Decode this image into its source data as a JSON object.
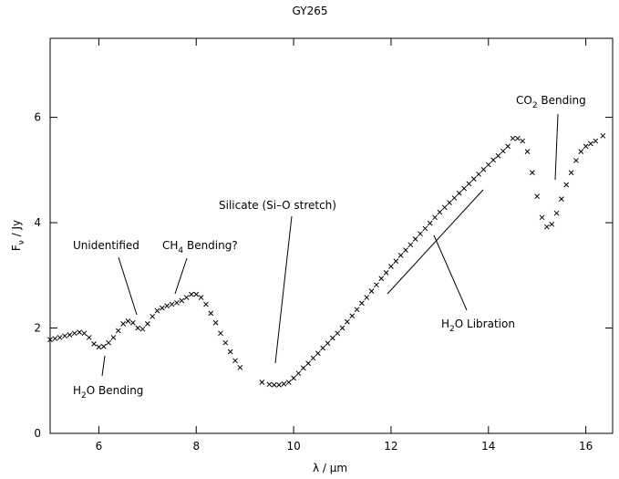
{
  "chart_data": {
    "type": "scatter",
    "title": "GY265",
    "x_label": {
      "main": "λ / μm"
    },
    "y_label": {
      "main": "F",
      "sub": "ν",
      "rest": " / Jy"
    },
    "xlim": [
      5,
      16.55
    ],
    "ylim": [
      0,
      7.5
    ],
    "xticks": [
      6,
      8,
      10,
      12,
      14,
      16
    ],
    "yticks": [
      0,
      2,
      4,
      6
    ],
    "color": "#000000",
    "x": [
      5.0,
      5.1,
      5.2,
      5.3,
      5.4,
      5.5,
      5.6,
      5.7,
      5.8,
      5.9,
      6.0,
      6.1,
      6.2,
      6.3,
      6.4,
      6.5,
      6.6,
      6.7,
      6.8,
      6.9,
      7.0,
      7.1,
      7.2,
      7.3,
      7.4,
      7.5,
      7.6,
      7.7,
      7.8,
      7.9,
      8.0,
      8.1,
      8.2,
      8.3,
      8.4,
      8.5,
      8.6,
      8.7,
      8.8,
      8.9,
      9.35,
      9.5,
      9.6,
      9.7,
      9.8,
      9.9,
      10.0,
      10.1,
      10.2,
      10.3,
      10.4,
      10.5,
      10.6,
      10.7,
      10.8,
      10.9,
      11.0,
      11.1,
      11.2,
      11.3,
      11.4,
      11.5,
      11.6,
      11.7,
      11.8,
      11.9,
      12.0,
      12.1,
      12.2,
      12.3,
      12.4,
      12.5,
      12.6,
      12.7,
      12.8,
      12.9,
      13.0,
      13.1,
      13.2,
      13.3,
      13.4,
      13.5,
      13.6,
      13.7,
      13.8,
      13.9,
      14.0,
      14.1,
      14.2,
      14.3,
      14.4,
      14.5,
      14.6,
      14.7,
      14.8,
      14.9,
      15.0,
      15.1,
      15.2,
      15.3,
      15.4,
      15.5,
      15.6,
      15.7,
      15.8,
      15.9,
      16.0,
      16.1,
      16.2,
      16.35
    ],
    "values": [
      1.78,
      1.8,
      1.82,
      1.85,
      1.87,
      1.9,
      1.92,
      1.9,
      1.82,
      1.7,
      1.64,
      1.65,
      1.72,
      1.82,
      1.95,
      2.08,
      2.13,
      2.1,
      2.0,
      1.98,
      2.08,
      2.22,
      2.33,
      2.38,
      2.42,
      2.45,
      2.48,
      2.52,
      2.58,
      2.64,
      2.64,
      2.58,
      2.45,
      2.28,
      2.1,
      1.9,
      1.72,
      1.55,
      1.38,
      1.25,
      0.97,
      0.93,
      0.92,
      0.92,
      0.94,
      0.97,
      1.05,
      1.14,
      1.24,
      1.33,
      1.43,
      1.52,
      1.62,
      1.71,
      1.81,
      1.9,
      2.0,
      2.12,
      2.23,
      2.35,
      2.47,
      2.58,
      2.7,
      2.82,
      2.94,
      3.05,
      3.17,
      3.27,
      3.38,
      3.48,
      3.58,
      3.69,
      3.79,
      3.89,
      3.99,
      4.1,
      4.2,
      4.29,
      4.38,
      4.47,
      4.56,
      4.65,
      4.74,
      4.83,
      4.92,
      5.01,
      5.1,
      5.19,
      5.27,
      5.36,
      5.45,
      5.6,
      5.6,
      5.55,
      5.35,
      4.95,
      4.5,
      4.1,
      3.92,
      3.97,
      4.18,
      4.45,
      4.72,
      4.95,
      5.18,
      5.35,
      5.45,
      5.5,
      5.55,
      5.65
    ],
    "annotations": [
      {
        "main": "Unidentified"
      },
      {
        "main": "CH",
        "sub": "4",
        "rest": " Bending?"
      },
      {
        "main": "H",
        "sub": "2",
        "rest": "O Bending"
      },
      {
        "main": "Silicate (Si–O stretch)"
      },
      {
        "main": "H",
        "sub": "2",
        "rest": "O Libration"
      },
      {
        "main": "CO",
        "sub": "2",
        "rest": " Bending"
      }
    ]
  }
}
